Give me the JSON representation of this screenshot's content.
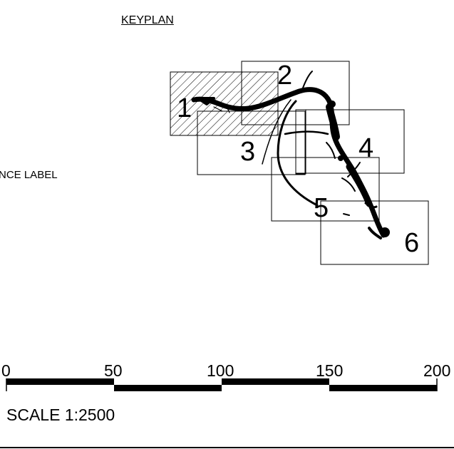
{
  "keyplan": {
    "title": "KEYPLAN"
  },
  "reference_label": "ENCE LABEL",
  "sheets": [
    {
      "number": "1",
      "hatched": true
    },
    {
      "number": "2",
      "hatched": false
    },
    {
      "number": "3",
      "hatched": false
    },
    {
      "number": "4",
      "hatched": false
    },
    {
      "number": "5",
      "hatched": false
    },
    {
      "number": "6",
      "hatched": false
    }
  ],
  "scale_bar": {
    "ticks": [
      "0",
      "50",
      "100",
      "150",
      "200"
    ],
    "label": "SCALE 1:2500"
  },
  "colors": {
    "ink": "#000000",
    "paper": "#ffffff"
  }
}
